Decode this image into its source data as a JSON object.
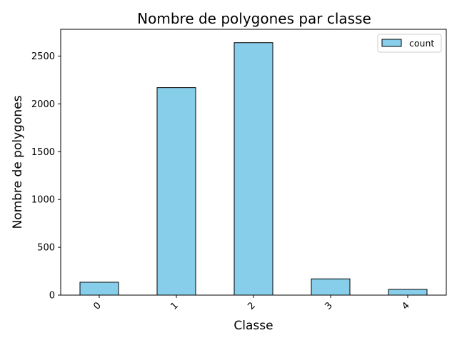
{
  "chart_data": {
    "type": "bar",
    "title": "Nombre de polygones par classe",
    "xlabel": "Classe",
    "ylabel": "Nombre de polygones",
    "categories": [
      "0",
      "1",
      "2",
      "3",
      "4"
    ],
    "series": [
      {
        "name": "count",
        "values": [
          135,
          2170,
          2640,
          170,
          60
        ]
      }
    ],
    "ylim": [
      0,
      2780
    ],
    "yticks": [
      0,
      500,
      1000,
      1500,
      2000,
      2500
    ],
    "grid": false,
    "legend": "top-right",
    "x_tick_rotation_deg": 45,
    "colors": {
      "bar_fill": "#87ceeb",
      "bar_edge": "#000000"
    }
  }
}
